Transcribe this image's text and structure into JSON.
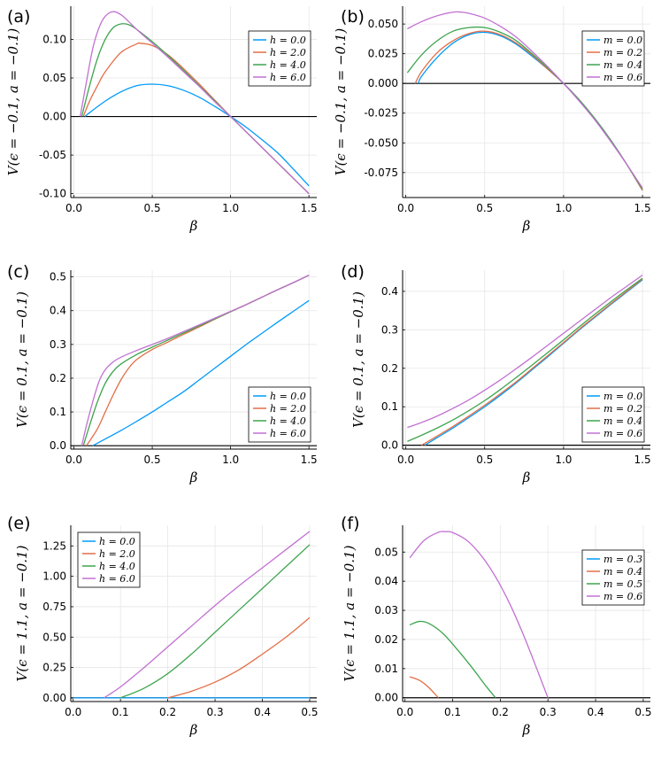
{
  "chart_data": [
    {
      "type": "line",
      "panel_label": "(a)",
      "xlabel": "β",
      "ylabel": "V(ϵ = −0.1, a = −0.1)",
      "xlim": [
        -0.02,
        1.55
      ],
      "ylim": [
        -0.105,
        0.143
      ],
      "xticks": [
        0.0,
        0.5,
        1.0,
        1.5
      ],
      "xtick_labels": [
        "0.0",
        "0.5",
        "1.0",
        "1.5"
      ],
      "yticks": [
        -0.1,
        -0.05,
        0.0,
        0.05,
        0.1
      ],
      "ytick_labels": [
        "-0.10",
        "-0.05",
        "0.00",
        "0.05",
        "0.10"
      ],
      "legend_position": "top-right",
      "hline": 0,
      "series": [
        {
          "name": "h = 0.0",
          "color": "#009AFA",
          "x": [
            0.07,
            0.1,
            0.2,
            0.3,
            0.4,
            0.5,
            0.6,
            0.7,
            0.8,
            0.9,
            1.0,
            1.1,
            1.2,
            1.3,
            1.4,
            1.5
          ],
          "values": [
            0.0,
            0.005,
            0.02,
            0.032,
            0.04,
            0.042,
            0.04,
            0.034,
            0.025,
            0.013,
            0.0,
            -0.014,
            -0.03,
            -0.047,
            -0.068,
            -0.09
          ]
        },
        {
          "name": "h = 2.0",
          "color": "#E36F47",
          "x": [
            0.06,
            0.1,
            0.15,
            0.2,
            0.3,
            0.4,
            0.42,
            0.5,
            0.6,
            0.7,
            0.8,
            0.9,
            1.0,
            1.1,
            1.2,
            1.3,
            1.4,
            1.5
          ],
          "values": [
            0.0,
            0.02,
            0.04,
            0.058,
            0.083,
            0.094,
            0.095,
            0.092,
            0.08,
            0.062,
            0.042,
            0.021,
            0.0,
            -0.02,
            -0.04,
            -0.06,
            -0.08,
            -0.1
          ]
        },
        {
          "name": "h = 4.0",
          "color": "#3EA44E",
          "x": [
            0.05,
            0.1,
            0.15,
            0.2,
            0.25,
            0.3,
            0.35,
            0.4,
            0.5,
            0.6,
            0.7,
            0.8,
            0.9,
            1.0,
            1.1,
            1.2,
            1.3,
            1.4,
            1.5
          ],
          "values": [
            0.0,
            0.04,
            0.075,
            0.1,
            0.115,
            0.12,
            0.119,
            0.113,
            0.097,
            0.079,
            0.06,
            0.04,
            0.02,
            0.0,
            -0.02,
            -0.04,
            -0.06,
            -0.08,
            -0.1
          ]
        },
        {
          "name": "h = 6.0",
          "color": "#C271D2",
          "x": [
            0.04,
            0.08,
            0.12,
            0.16,
            0.2,
            0.25,
            0.3,
            0.35,
            0.4,
            0.5,
            0.6,
            0.7,
            0.8,
            0.9,
            1.0,
            1.1,
            1.2,
            1.3,
            1.4,
            1.5
          ],
          "values": [
            0.0,
            0.045,
            0.088,
            0.115,
            0.13,
            0.136,
            0.132,
            0.123,
            0.113,
            0.095,
            0.077,
            0.058,
            0.039,
            0.019,
            0.0,
            -0.02,
            -0.04,
            -0.06,
            -0.08,
            -0.1
          ]
        }
      ]
    },
    {
      "type": "line",
      "panel_label": "(b)",
      "xlabel": "β",
      "ylabel": "V(ϵ = −0.1, a = −0.1)",
      "xlim": [
        -0.02,
        1.55
      ],
      "ylim": [
        -0.096,
        0.065
      ],
      "xticks": [
        0.0,
        0.5,
        1.0,
        1.5
      ],
      "xtick_labels": [
        "0.0",
        "0.5",
        "1.0",
        "1.5"
      ],
      "yticks": [
        -0.075,
        -0.05,
        -0.025,
        0.0,
        0.025,
        0.05
      ],
      "ytick_labels": [
        "-0.075",
        "-0.050",
        "-0.025",
        "0.000",
        "0.025",
        "0.050"
      ],
      "legend_position": "top-right",
      "hline": 0,
      "series": [
        {
          "name": "m = 0.0",
          "color": "#009AFA",
          "x": [
            0.08,
            0.1,
            0.2,
            0.3,
            0.4,
            0.5,
            0.6,
            0.7,
            0.8,
            0.9,
            1.0,
            1.1,
            1.2,
            1.3,
            1.4,
            1.5
          ],
          "values": [
            0.0,
            0.006,
            0.022,
            0.034,
            0.041,
            0.043,
            0.04,
            0.033,
            0.023,
            0.012,
            0.0,
            -0.014,
            -0.03,
            -0.048,
            -0.068,
            -0.09
          ]
        },
        {
          "name": "m = 0.2",
          "color": "#E36F47",
          "x": [
            0.06,
            0.1,
            0.2,
            0.3,
            0.4,
            0.5,
            0.6,
            0.7,
            0.8,
            0.9,
            1.0,
            1.1,
            1.2,
            1.3,
            1.4,
            1.5
          ],
          "values": [
            0.0,
            0.01,
            0.026,
            0.036,
            0.042,
            0.044,
            0.041,
            0.034,
            0.024,
            0.012,
            0.0,
            -0.014,
            -0.03,
            -0.048,
            -0.068,
            -0.09
          ]
        },
        {
          "name": "m = 0.4",
          "color": "#3EA44E",
          "x": [
            0.01,
            0.1,
            0.2,
            0.3,
            0.4,
            0.5,
            0.6,
            0.7,
            0.8,
            0.9,
            1.0,
            1.1,
            1.2,
            1.3,
            1.4,
            1.5
          ],
          "values": [
            0.009,
            0.024,
            0.036,
            0.044,
            0.047,
            0.047,
            0.043,
            0.036,
            0.025,
            0.013,
            0.0,
            -0.014,
            -0.03,
            -0.048,
            -0.068,
            -0.089
          ]
        },
        {
          "name": "m = 0.6",
          "color": "#C271D2",
          "x": [
            0.01,
            0.1,
            0.2,
            0.3,
            0.35,
            0.4,
            0.5,
            0.6,
            0.7,
            0.8,
            0.9,
            1.0,
            1.1,
            1.2,
            1.3,
            1.4,
            1.5
          ],
          "values": [
            0.046,
            0.052,
            0.057,
            0.06,
            0.06,
            0.059,
            0.055,
            0.048,
            0.039,
            0.027,
            0.014,
            0.0,
            -0.015,
            -0.031,
            -0.049,
            -0.068,
            -0.088
          ]
        }
      ]
    },
    {
      "type": "line",
      "panel_label": "(c)",
      "xlabel": "β",
      "ylabel": "V(ϵ = 0.1, a = −0.1)",
      "xlim": [
        -0.02,
        1.55
      ],
      "ylim": [
        -0.01,
        0.52
      ],
      "xticks": [
        0.0,
        0.5,
        1.0,
        1.5
      ],
      "xtick_labels": [
        "0.0",
        "0.5",
        "1.0",
        "1.5"
      ],
      "yticks": [
        0.0,
        0.1,
        0.2,
        0.3,
        0.4,
        0.5
      ],
      "ytick_labels": [
        "0.0",
        "0.1",
        "0.2",
        "0.3",
        "0.4",
        "0.5"
      ],
      "legend_position": "bottom-right",
      "hline": 0,
      "series": [
        {
          "name": "h = 0.0",
          "color": "#009AFA",
          "x": [
            0.12,
            0.2,
            0.3,
            0.4,
            0.5,
            0.6,
            0.7,
            0.8,
            0.9,
            1.0,
            1.1,
            1.2,
            1.3,
            1.4,
            1.5
          ],
          "values": [
            0.0,
            0.02,
            0.045,
            0.072,
            0.1,
            0.13,
            0.16,
            0.195,
            0.23,
            0.265,
            0.3,
            0.333,
            0.366,
            0.398,
            0.43
          ]
        },
        {
          "name": "h = 2.0",
          "color": "#E36F47",
          "x": [
            0.08,
            0.15,
            0.2,
            0.25,
            0.3,
            0.35,
            0.4,
            0.5,
            0.6,
            0.7,
            0.8,
            0.9,
            1.0,
            1.1,
            1.2,
            1.3,
            1.4,
            1.5
          ],
          "values": [
            0.0,
            0.05,
            0.1,
            0.15,
            0.195,
            0.23,
            0.255,
            0.285,
            0.307,
            0.33,
            0.352,
            0.375,
            0.397,
            0.418,
            0.44,
            0.462,
            0.483,
            0.505
          ]
        },
        {
          "name": "h = 4.0",
          "color": "#3EA44E",
          "x": [
            0.06,
            0.1,
            0.15,
            0.2,
            0.25,
            0.3,
            0.4,
            0.5,
            0.6,
            0.7,
            0.8,
            0.9,
            1.0,
            1.1,
            1.2,
            1.3,
            1.4,
            1.5
          ],
          "values": [
            0.0,
            0.06,
            0.13,
            0.185,
            0.22,
            0.242,
            0.27,
            0.292,
            0.313,
            0.334,
            0.355,
            0.376,
            0.397,
            0.418,
            0.44,
            0.462,
            0.483,
            0.505
          ]
        },
        {
          "name": "h = 6.0",
          "color": "#C271D2",
          "x": [
            0.05,
            0.08,
            0.12,
            0.16,
            0.2,
            0.25,
            0.3,
            0.4,
            0.5,
            0.6,
            0.7,
            0.8,
            0.9,
            1.0,
            1.1,
            1.2,
            1.3,
            1.4,
            1.5
          ],
          "values": [
            0.0,
            0.06,
            0.13,
            0.19,
            0.225,
            0.248,
            0.262,
            0.282,
            0.3,
            0.318,
            0.338,
            0.358,
            0.378,
            0.398,
            0.418,
            0.44,
            0.462,
            0.483,
            0.505
          ]
        }
      ]
    },
    {
      "type": "line",
      "panel_label": "(d)",
      "xlabel": "β",
      "ylabel": "V(ϵ = 0.1, a = −0.1)",
      "xlim": [
        -0.02,
        1.55
      ],
      "ylim": [
        -0.01,
        0.455
      ],
      "xticks": [
        0.0,
        0.5,
        1.0,
        1.5
      ],
      "xtick_labels": [
        "0.0",
        "0.5",
        "1.0",
        "1.5"
      ],
      "yticks": [
        0.0,
        0.1,
        0.2,
        0.3,
        0.4
      ],
      "ytick_labels": [
        "0.0",
        "0.1",
        "0.2",
        "0.3",
        "0.4"
      ],
      "legend_position": "bottom-right",
      "hline": 0,
      "series": [
        {
          "name": "m = 0.0",
          "color": "#009AFA",
          "x": [
            0.12,
            0.2,
            0.3,
            0.4,
            0.5,
            0.6,
            0.7,
            0.8,
            0.9,
            1.0,
            1.1,
            1.2,
            1.3,
            1.4,
            1.5
          ],
          "values": [
            0.0,
            0.02,
            0.045,
            0.072,
            0.1,
            0.13,
            0.162,
            0.196,
            0.23,
            0.265,
            0.3,
            0.333,
            0.366,
            0.398,
            0.43
          ]
        },
        {
          "name": "m = 0.2",
          "color": "#E36F47",
          "x": [
            0.1,
            0.2,
            0.3,
            0.4,
            0.5,
            0.6,
            0.7,
            0.8,
            0.9,
            1.0,
            1.1,
            1.2,
            1.3,
            1.4,
            1.5
          ],
          "values": [
            0.0,
            0.024,
            0.049,
            0.076,
            0.104,
            0.134,
            0.165,
            0.199,
            0.233,
            0.267,
            0.302,
            0.335,
            0.368,
            0.4,
            0.432
          ]
        },
        {
          "name": "m = 0.4",
          "color": "#3EA44E",
          "x": [
            0.01,
            0.1,
            0.2,
            0.3,
            0.4,
            0.5,
            0.6,
            0.7,
            0.8,
            0.9,
            1.0,
            1.1,
            1.2,
            1.3,
            1.4,
            1.5
          ],
          "values": [
            0.01,
            0.026,
            0.045,
            0.066,
            0.09,
            0.116,
            0.145,
            0.176,
            0.208,
            0.241,
            0.274,
            0.308,
            0.341,
            0.373,
            0.404,
            0.434
          ]
        },
        {
          "name": "m = 0.6",
          "color": "#C271D2",
          "x": [
            0.01,
            0.1,
            0.2,
            0.3,
            0.4,
            0.5,
            0.6,
            0.7,
            0.8,
            0.9,
            1.0,
            1.1,
            1.2,
            1.3,
            1.4,
            1.5
          ],
          "values": [
            0.046,
            0.059,
            0.076,
            0.096,
            0.118,
            0.143,
            0.17,
            0.199,
            0.229,
            0.26,
            0.291,
            0.322,
            0.353,
            0.384,
            0.413,
            0.442
          ]
        }
      ]
    },
    {
      "type": "line",
      "panel_label": "(e)",
      "xlabel": "β",
      "ylabel": "V(ϵ = 1.1, a = −0.1)",
      "xlim": [
        -0.005,
        0.515
      ],
      "ylim": [
        -0.03,
        1.42
      ],
      "xticks": [
        0.0,
        0.1,
        0.2,
        0.3,
        0.4,
        0.5
      ],
      "xtick_labels": [
        "0.0",
        "0.1",
        "0.2",
        "0.3",
        "0.4",
        "0.5"
      ],
      "yticks": [
        0.0,
        0.25,
        0.5,
        0.75,
        1.0,
        1.25
      ],
      "ytick_labels": [
        "0.00",
        "0.25",
        "0.50",
        "0.75",
        "1.00",
        "1.25"
      ],
      "legend_position": "top-left",
      "hline": 0,
      "series": [
        {
          "name": "h = 0.0",
          "color": "#009AFA",
          "x": [
            0.0,
            0.5
          ],
          "values": [
            0.0,
            0.0
          ]
        },
        {
          "name": "h = 2.0",
          "color": "#E36F47",
          "x": [
            0.2,
            0.25,
            0.3,
            0.35,
            0.4,
            0.45,
            0.5
          ],
          "values": [
            0.0,
            0.055,
            0.13,
            0.23,
            0.36,
            0.5,
            0.66
          ]
        },
        {
          "name": "h = 4.0",
          "color": "#3EA44E",
          "x": [
            0.1,
            0.15,
            0.2,
            0.25,
            0.3,
            0.35,
            0.4,
            0.45,
            0.5
          ],
          "values": [
            0.0,
            0.08,
            0.2,
            0.36,
            0.54,
            0.72,
            0.9,
            1.08,
            1.26
          ]
        },
        {
          "name": "h = 6.0",
          "color": "#C271D2",
          "x": [
            0.065,
            0.1,
            0.15,
            0.2,
            0.25,
            0.3,
            0.35,
            0.4,
            0.45,
            0.5
          ],
          "values": [
            0.0,
            0.09,
            0.25,
            0.42,
            0.59,
            0.76,
            0.92,
            1.07,
            1.22,
            1.37
          ]
        }
      ]
    },
    {
      "type": "line",
      "panel_label": "(f)",
      "xlabel": "β",
      "ylabel": "V(ϵ = 1.1, a = −0.1)",
      "xlim": [
        -0.005,
        0.515
      ],
      "ylim": [
        -0.0013,
        0.0592
      ],
      "xticks": [
        0.0,
        0.1,
        0.2,
        0.3,
        0.4,
        0.5
      ],
      "xtick_labels": [
        "0.0",
        "0.1",
        "0.2",
        "0.3",
        "0.4",
        "0.5"
      ],
      "yticks": [
        0.0,
        0.01,
        0.02,
        0.03,
        0.04,
        0.05
      ],
      "ytick_labels": [
        "0.00",
        "0.01",
        "0.02",
        "0.03",
        "0.04",
        "0.05"
      ],
      "legend_position": "top-right",
      "hline": 0,
      "series": [
        {
          "name": "m = 0.3",
          "color": "#009AFA",
          "x": [],
          "values": []
        },
        {
          "name": "m = 0.4",
          "color": "#E36F47",
          "x": [
            0.01,
            0.03,
            0.05,
            0.07
          ],
          "values": [
            0.0072,
            0.006,
            0.0035,
            0.0
          ]
        },
        {
          "name": "m = 0.5",
          "color": "#3EA44E",
          "x": [
            0.01,
            0.03,
            0.05,
            0.08,
            0.11,
            0.14,
            0.17,
            0.19
          ],
          "values": [
            0.025,
            0.0262,
            0.0255,
            0.022,
            0.0165,
            0.0105,
            0.004,
            0.0
          ]
        },
        {
          "name": "m = 0.6",
          "color": "#C271D2",
          "x": [
            0.01,
            0.04,
            0.07,
            0.085,
            0.1,
            0.13,
            0.16,
            0.19,
            0.22,
            0.25,
            0.28,
            0.3
          ],
          "values": [
            0.048,
            0.054,
            0.0568,
            0.057,
            0.0567,
            0.054,
            0.0488,
            0.0415,
            0.0322,
            0.021,
            0.0085,
            0.0
          ]
        }
      ]
    }
  ]
}
